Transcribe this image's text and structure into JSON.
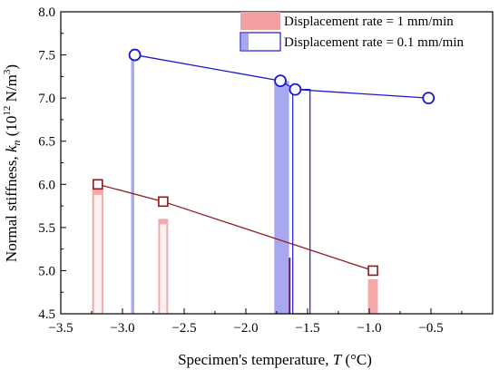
{
  "chart_data": {
    "type": "bar+line",
    "xlabel_prefix": "Specimen's temperature, ",
    "xlabel_var": "T",
    "xlabel_unit": " (°C)",
    "ylabel_prefix": "Normal stiffness, ",
    "ylabel_var": "k",
    "ylabel_sub": "n",
    "ylabel_unit_a": " (10",
    "ylabel_unit_exp1": "12",
    "ylabel_unit_b": " N/m",
    "ylabel_unit_exp2": "3",
    "ylabel_unit_c": ")",
    "xlim": [
      -3.5,
      0.0
    ],
    "ylim": [
      4.5,
      8.0
    ],
    "x_ticks": [
      -3.5,
      -3.0,
      -2.5,
      -2.0,
      -1.5,
      -1.0,
      -0.5
    ],
    "x_tick_labels": [
      "−3.5",
      "−3.0",
      "−2.5",
      "−2.0",
      "−1.5",
      "−1.0",
      "−0.5"
    ],
    "y_ticks": [
      4.5,
      5.0,
      5.5,
      6.0,
      6.5,
      7.0,
      7.5,
      8.0
    ],
    "y_tick_labels": [
      "4.5",
      "5.0",
      "5.5",
      "6.0",
      "6.5",
      "7.0",
      "7.5",
      "8.0"
    ],
    "legend_position": "top-right",
    "series": [
      {
        "name": "Displacement rate = 1 mm/min",
        "color": "#f4a0a0",
        "edge_color": "#8b1a1a",
        "line_color": "#8b2020",
        "marker": "square",
        "x": [
          -3.2,
          -2.67,
          -0.97
        ],
        "y": [
          6.0,
          5.8,
          5.0
        ]
      },
      {
        "name": "Displacement rate = 0.1 mm/min",
        "color": "#a8a8f0",
        "edge_color": "#1a1acc",
        "line_color": "#1a1acc",
        "marker": "circle",
        "x": [
          -2.9,
          -1.72,
          -1.6,
          -0.52
        ],
        "y": [
          7.5,
          7.2,
          7.1,
          7.0
        ]
      }
    ]
  }
}
